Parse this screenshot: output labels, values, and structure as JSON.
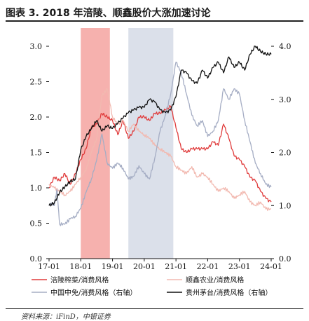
{
  "title": "图表 3. 2018 年涪陵、顺鑫股价大涨加速讨论",
  "source": "资料来源：iFinD，中银证券",
  "chart_data": {
    "type": "line",
    "title": "",
    "xlabel": "",
    "ylabel": "",
    "ylabel_right": "",
    "x_ticks": [
      "17-01",
      "18-01",
      "19-01",
      "20-01",
      "21-01",
      "22-01",
      "23-01",
      "24-01"
    ],
    "xlim": [
      "2017-01",
      "2024-01"
    ],
    "ylim_left": [
      0.0,
      3.0
    ],
    "y_ticks_left": [
      "0.0",
      "0.5",
      "1.0",
      "1.5",
      "2.0",
      "2.5",
      "3.0"
    ],
    "ylim_right": [
      0.0,
      4.0
    ],
    "y_ticks_right": [
      "0.0",
      "1.0",
      "2.0",
      "3.0",
      "4.0"
    ],
    "grid": false,
    "legend_position": "bottom",
    "shaded_periods": [
      {
        "start": "2018-01",
        "end": "2018-12",
        "color": "#f4a3a0"
      },
      {
        "start": "2019-07",
        "end": "2020-12",
        "color": "#d5dbe6"
      }
    ],
    "series": [
      {
        "name": "涪陵榨菜/消费风格",
        "axis": "left",
        "color": "#e03c3c",
        "points": [
          [
            "2017-01",
            1.0
          ],
          [
            "2017-03",
            1.15
          ],
          [
            "2017-05",
            1.1
          ],
          [
            "2017-07",
            1.2
          ],
          [
            "2017-09",
            1.05
          ],
          [
            "2017-11",
            1.2
          ],
          [
            "2018-01",
            1.4
          ],
          [
            "2018-03",
            1.55
          ],
          [
            "2018-05",
            1.85
          ],
          [
            "2018-07",
            1.9
          ],
          [
            "2018-09",
            2.05
          ],
          [
            "2018-11",
            2.0
          ],
          [
            "2019-01",
            1.95
          ],
          [
            "2019-03",
            1.75
          ],
          [
            "2019-05",
            1.95
          ],
          [
            "2019-07",
            1.7
          ],
          [
            "2019-09",
            1.8
          ],
          [
            "2019-11",
            2.0
          ],
          [
            "2020-01",
            2.0
          ],
          [
            "2020-03",
            1.95
          ],
          [
            "2020-05",
            2.05
          ],
          [
            "2020-07",
            2.05
          ],
          [
            "2020-09",
            2.1
          ],
          [
            "2020-11",
            2.15
          ],
          [
            "2021-01",
            1.85
          ],
          [
            "2021-03",
            1.55
          ],
          [
            "2021-05",
            1.5
          ],
          [
            "2021-07",
            1.55
          ],
          [
            "2021-09",
            1.55
          ],
          [
            "2021-11",
            1.55
          ],
          [
            "2022-01",
            1.55
          ],
          [
            "2022-03",
            1.65
          ],
          [
            "2022-05",
            1.6
          ],
          [
            "2022-07",
            1.9
          ],
          [
            "2022-09",
            1.7
          ],
          [
            "2022-11",
            1.45
          ],
          [
            "2023-01",
            1.4
          ],
          [
            "2023-03",
            1.3
          ],
          [
            "2023-05",
            1.15
          ],
          [
            "2023-07",
            1.1
          ],
          [
            "2023-09",
            0.95
          ],
          [
            "2023-11",
            0.85
          ],
          [
            "2024-01",
            0.8
          ]
        ]
      },
      {
        "name": "顺鑫农业/消费风格",
        "axis": "left",
        "color": "#f2b9b0",
        "points": [
          [
            "2017-01",
            1.05
          ],
          [
            "2017-03",
            1.0
          ],
          [
            "2017-05",
            0.95
          ],
          [
            "2017-07",
            0.9
          ],
          [
            "2017-09",
            0.95
          ],
          [
            "2017-11",
            1.05
          ],
          [
            "2018-01",
            1.15
          ],
          [
            "2018-03",
            1.25
          ],
          [
            "2018-05",
            1.5
          ],
          [
            "2018-07",
            1.7
          ],
          [
            "2018-09",
            2.3
          ],
          [
            "2018-11",
            2.4
          ],
          [
            "2019-01",
            2.0
          ],
          [
            "2019-03",
            1.9
          ],
          [
            "2019-05",
            1.95
          ],
          [
            "2019-07",
            1.8
          ],
          [
            "2019-09",
            1.9
          ],
          [
            "2019-11",
            1.8
          ],
          [
            "2020-01",
            1.75
          ],
          [
            "2020-03",
            1.7
          ],
          [
            "2020-05",
            1.6
          ],
          [
            "2020-07",
            1.55
          ],
          [
            "2020-09",
            1.5
          ],
          [
            "2020-11",
            1.45
          ],
          [
            "2021-01",
            1.3
          ],
          [
            "2021-03",
            1.25
          ],
          [
            "2021-05",
            1.2
          ],
          [
            "2021-07",
            1.3
          ],
          [
            "2021-09",
            1.15
          ],
          [
            "2021-11",
            1.2
          ],
          [
            "2022-01",
            1.15
          ],
          [
            "2022-03",
            1.05
          ],
          [
            "2022-05",
            0.95
          ],
          [
            "2022-07",
            1.0
          ],
          [
            "2022-09",
            0.95
          ],
          [
            "2022-11",
            0.85
          ],
          [
            "2023-01",
            0.9
          ],
          [
            "2023-03",
            0.95
          ],
          [
            "2023-05",
            0.8
          ],
          [
            "2023-07",
            0.75
          ],
          [
            "2023-09",
            0.8
          ],
          [
            "2023-11",
            0.7
          ],
          [
            "2024-01",
            0.7
          ]
        ]
      },
      {
        "name": "中国中免/消费风格（右轴）",
        "axis": "right",
        "color": "#a5adc4",
        "points": [
          [
            "2017-01",
            1.0
          ],
          [
            "2017-02",
            1.05
          ],
          [
            "2017-03",
            1.0
          ],
          [
            "2017-04",
            1.3
          ],
          [
            "2017-05",
            0.65
          ],
          [
            "2017-07",
            0.65
          ],
          [
            "2017-09",
            0.75
          ],
          [
            "2017-11",
            0.8
          ],
          [
            "2018-01",
            0.95
          ],
          [
            "2018-03",
            1.25
          ],
          [
            "2018-05",
            1.5
          ],
          [
            "2018-07",
            1.85
          ],
          [
            "2018-09",
            2.35
          ],
          [
            "2018-11",
            1.8
          ],
          [
            "2019-01",
            1.7
          ],
          [
            "2019-03",
            1.8
          ],
          [
            "2019-05",
            1.7
          ],
          [
            "2019-07",
            1.5
          ],
          [
            "2019-09",
            1.55
          ],
          [
            "2019-11",
            1.75
          ],
          [
            "2020-01",
            1.6
          ],
          [
            "2020-03",
            1.5
          ],
          [
            "2020-05",
            1.9
          ],
          [
            "2020-07",
            2.4
          ],
          [
            "2020-09",
            2.7
          ],
          [
            "2020-11",
            3.1
          ],
          [
            "2021-01",
            3.7
          ],
          [
            "2021-03",
            3.5
          ],
          [
            "2021-05",
            3.1
          ],
          [
            "2021-07",
            2.7
          ],
          [
            "2021-09",
            2.5
          ],
          [
            "2021-11",
            2.6
          ],
          [
            "2022-01",
            2.3
          ],
          [
            "2022-03",
            2.4
          ],
          [
            "2022-05",
            2.6
          ],
          [
            "2022-07",
            3.2
          ],
          [
            "2022-09",
            3.0
          ],
          [
            "2022-11",
            3.2
          ],
          [
            "2023-01",
            3.1
          ],
          [
            "2023-03",
            2.6
          ],
          [
            "2023-05",
            2.2
          ],
          [
            "2023-07",
            1.8
          ],
          [
            "2023-09",
            1.6
          ],
          [
            "2023-11",
            1.4
          ],
          [
            "2024-01",
            1.35
          ]
        ]
      },
      {
        "name": "贵州茅台/消费风格（右轴）",
        "axis": "right",
        "color": "#111111",
        "points": [
          [
            "2017-01",
            1.0
          ],
          [
            "2017-03",
            1.05
          ],
          [
            "2017-05",
            1.25
          ],
          [
            "2017-07",
            1.35
          ],
          [
            "2017-09",
            1.45
          ],
          [
            "2017-11",
            1.5
          ],
          [
            "2018-01",
            2.05
          ],
          [
            "2018-03",
            2.3
          ],
          [
            "2018-05",
            2.45
          ],
          [
            "2018-07",
            2.6
          ],
          [
            "2018-09",
            2.4
          ],
          [
            "2018-11",
            2.5
          ],
          [
            "2019-01",
            2.45
          ],
          [
            "2019-03",
            2.55
          ],
          [
            "2019-05",
            2.65
          ],
          [
            "2019-07",
            2.75
          ],
          [
            "2019-09",
            2.8
          ],
          [
            "2019-11",
            2.85
          ],
          [
            "2020-01",
            2.85
          ],
          [
            "2020-03",
            3.0
          ],
          [
            "2020-05",
            2.95
          ],
          [
            "2020-07",
            2.8
          ],
          [
            "2020-09",
            2.75
          ],
          [
            "2020-11",
            2.8
          ],
          [
            "2021-01",
            3.05
          ],
          [
            "2021-03",
            3.55
          ],
          [
            "2021-05",
            3.5
          ],
          [
            "2021-07",
            3.35
          ],
          [
            "2021-09",
            3.3
          ],
          [
            "2021-11",
            3.55
          ],
          [
            "2022-01",
            3.4
          ],
          [
            "2022-03",
            3.6
          ],
          [
            "2022-05",
            3.7
          ],
          [
            "2022-07",
            3.5
          ],
          [
            "2022-09",
            3.8
          ],
          [
            "2022-11",
            3.6
          ],
          [
            "2023-01",
            3.7
          ],
          [
            "2023-03",
            3.55
          ],
          [
            "2023-05",
            3.85
          ],
          [
            "2023-07",
            4.0
          ],
          [
            "2023-09",
            3.9
          ],
          [
            "2023-11",
            3.85
          ],
          [
            "2024-01",
            3.85
          ]
        ]
      }
    ]
  }
}
